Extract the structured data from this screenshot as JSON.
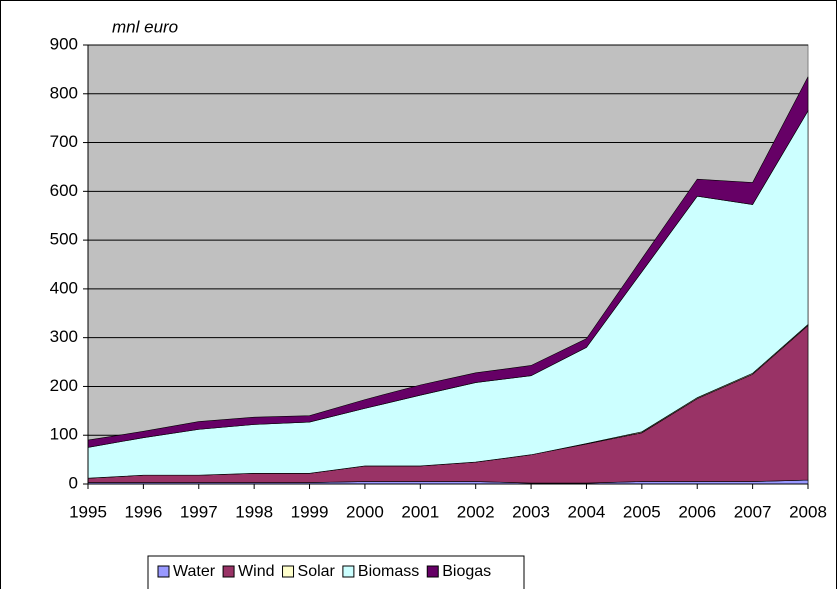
{
  "chart_data": {
    "type": "stacked_area",
    "ylabel": "mnl euro",
    "x": [
      1995,
      1996,
      1997,
      1998,
      1999,
      2000,
      2001,
      2002,
      2003,
      2004,
      2005,
      2006,
      2007,
      2008
    ],
    "xlim": [
      1995,
      2008
    ],
    "xticks": [
      1995,
      1996,
      1997,
      1998,
      1999,
      2000,
      2001,
      2002,
      2003,
      2004,
      2005,
      2006,
      2007,
      2008
    ],
    "ylim": [
      0,
      900
    ],
    "yticks": [
      0,
      100,
      200,
      300,
      400,
      500,
      600,
      700,
      800,
      900
    ],
    "grid": true,
    "legend": "bottom",
    "series": [
      {
        "name": "Water",
        "color": "#9999ff",
        "values": [
          3,
          3,
          3,
          3,
          3,
          5,
          5,
          5,
          2,
          2,
          5,
          5,
          5,
          8
        ]
      },
      {
        "name": "Wind",
        "color": "#993366",
        "values": [
          9,
          15,
          15,
          19,
          19,
          32,
          32,
          40,
          58,
          80,
          100,
          170,
          220,
          317
        ]
      },
      {
        "name": "Solar",
        "color": "#ffffcc",
        "values": [
          0,
          0,
          0,
          0,
          0,
          0,
          0,
          0,
          0,
          1,
          2,
          2,
          2,
          2
        ]
      },
      {
        "name": "Biomass",
        "color": "#ccffff",
        "values": [
          63,
          77,
          94,
          100,
          105,
          118,
          145,
          163,
          162,
          197,
          328,
          413,
          346,
          438
        ]
      },
      {
        "name": "Biogas",
        "color": "#660066",
        "values": [
          15,
          13,
          16,
          15,
          13,
          18,
          21,
          20,
          21,
          18,
          27,
          35,
          45,
          70
        ]
      }
    ]
  }
}
